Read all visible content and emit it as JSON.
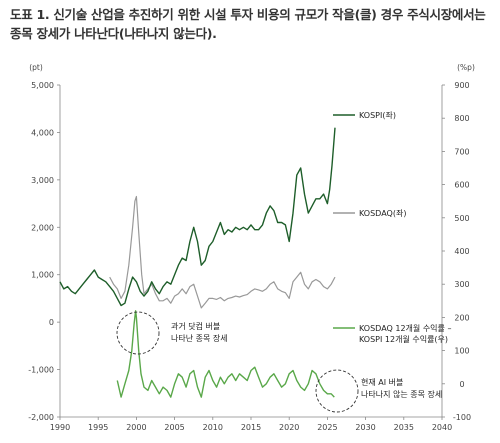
{
  "title": "도표 1. 신기술 산업을 추진하기 위한 시설 투자 비용의 규모가 작을(클) 경우 주식시장에서는 종목 장세가 나타난다(나타나지 않는다).",
  "chart_data": {
    "type": "line",
    "title": "도표 1. 신기술 산업을 추진하기 위한 시설 투자 비용의 규모가 작을(클) 경우 주식시장에서는 종목 장세가 나타난다(나타나지 않는다).",
    "xlim": [
      1990,
      2040
    ],
    "x_ticks": [
      "1990",
      "1995",
      "2000",
      "2005",
      "2010",
      "2015",
      "2020",
      "2025",
      "2030",
      "2035",
      "2040"
    ],
    "y_left": {
      "unit": "(pt)",
      "range": [
        -2000,
        5000
      ],
      "ticks": [
        "5,000",
        "4,000",
        "3,000",
        "2,000",
        "1,000",
        "0",
        "-1,000",
        "-2,000"
      ]
    },
    "y_right": {
      "unit": "(%p)",
      "range": [
        -100,
        900
      ],
      "ticks": [
        "900",
        "800",
        "700",
        "600",
        "500",
        "400",
        "300",
        "200",
        "100",
        "0",
        "-100"
      ]
    },
    "series": [
      {
        "name": "KOSPI(좌)",
        "axis": "left",
        "color": "#1e5e2a",
        "points": [
          [
            1990,
            850
          ],
          [
            1990.5,
            700
          ],
          [
            1991,
            750
          ],
          [
            1991.5,
            650
          ],
          [
            1992,
            600
          ],
          [
            1992.5,
            700
          ],
          [
            1993,
            800
          ],
          [
            1993.5,
            900
          ],
          [
            1994,
            1000
          ],
          [
            1994.5,
            1100
          ],
          [
            1995,
            950
          ],
          [
            1995.5,
            900
          ],
          [
            1996,
            850
          ],
          [
            1996.5,
            750
          ],
          [
            1997,
            650
          ],
          [
            1997.5,
            500
          ],
          [
            1998,
            350
          ],
          [
            1998.5,
            400
          ],
          [
            1999,
            700
          ],
          [
            1999.5,
            950
          ],
          [
            2000,
            850
          ],
          [
            2000.5,
            650
          ],
          [
            2001,
            550
          ],
          [
            2001.5,
            650
          ],
          [
            2002,
            850
          ],
          [
            2002.5,
            700
          ],
          [
            2003,
            600
          ],
          [
            2003.5,
            750
          ],
          [
            2004,
            850
          ],
          [
            2004.5,
            800
          ],
          [
            2005,
            1000
          ],
          [
            2005.5,
            1200
          ],
          [
            2006,
            1350
          ],
          [
            2006.5,
            1300
          ],
          [
            2007,
            1700
          ],
          [
            2007.5,
            2000
          ],
          [
            2008,
            1700
          ],
          [
            2008.5,
            1200
          ],
          [
            2009,
            1300
          ],
          [
            2009.5,
            1600
          ],
          [
            2010,
            1700
          ],
          [
            2010.5,
            1900
          ],
          [
            2011,
            2100
          ],
          [
            2011.5,
            1850
          ],
          [
            2012,
            1950
          ],
          [
            2012.5,
            1900
          ],
          [
            2013,
            2000
          ],
          [
            2013.5,
            1950
          ],
          [
            2014,
            2000
          ],
          [
            2014.5,
            1950
          ],
          [
            2015,
            2050
          ],
          [
            2015.5,
            1950
          ],
          [
            2016,
            1950
          ],
          [
            2016.5,
            2050
          ],
          [
            2017,
            2300
          ],
          [
            2017.5,
            2450
          ],
          [
            2018,
            2350
          ],
          [
            2018.5,
            2100
          ],
          [
            2019,
            2100
          ],
          [
            2019.5,
            2050
          ],
          [
            2020,
            1700
          ],
          [
            2020.5,
            2300
          ],
          [
            2021,
            3100
          ],
          [
            2021.5,
            3250
          ],
          [
            2022,
            2700
          ],
          [
            2022.5,
            2300
          ],
          [
            2023,
            2450
          ],
          [
            2023.5,
            2600
          ],
          [
            2024,
            2600
          ],
          [
            2024.5,
            2700
          ],
          [
            2025,
            2500
          ],
          [
            2025.3,
            2800
          ],
          [
            2025.6,
            3300
          ],
          [
            2025.8,
            3700
          ],
          [
            2026,
            4100
          ]
        ]
      },
      {
        "name": "KOSDAQ(좌)",
        "axis": "left",
        "color": "#999999",
        "points": [
          [
            1996.5,
            950
          ],
          [
            1997,
            800
          ],
          [
            1997.5,
            700
          ],
          [
            1998,
            500
          ],
          [
            1998.5,
            650
          ],
          [
            1999,
            1200
          ],
          [
            1999.5,
            2000
          ],
          [
            1999.8,
            2550
          ],
          [
            2000,
            2650
          ],
          [
            2000.3,
            1900
          ],
          [
            2000.7,
            1000
          ],
          [
            2001,
            600
          ],
          [
            2001.5,
            700
          ],
          [
            2002,
            800
          ],
          [
            2002.5,
            600
          ],
          [
            2003,
            450
          ],
          [
            2003.5,
            450
          ],
          [
            2004,
            500
          ],
          [
            2004.5,
            400
          ],
          [
            2005,
            550
          ],
          [
            2005.5,
            600
          ],
          [
            2006,
            700
          ],
          [
            2006.5,
            600
          ],
          [
            2007,
            750
          ],
          [
            2007.5,
            800
          ],
          [
            2008,
            550
          ],
          [
            2008.5,
            300
          ],
          [
            2009,
            400
          ],
          [
            2009.5,
            500
          ],
          [
            2010,
            500
          ],
          [
            2010.5,
            480
          ],
          [
            2011,
            520
          ],
          [
            2011.5,
            450
          ],
          [
            2012,
            500
          ],
          [
            2012.5,
            520
          ],
          [
            2013,
            550
          ],
          [
            2013.5,
            530
          ],
          [
            2014,
            560
          ],
          [
            2014.5,
            580
          ],
          [
            2015,
            650
          ],
          [
            2015.5,
            700
          ],
          [
            2016,
            680
          ],
          [
            2016.5,
            650
          ],
          [
            2017,
            700
          ],
          [
            2017.5,
            800
          ],
          [
            2018,
            850
          ],
          [
            2018.5,
            700
          ],
          [
            2019,
            650
          ],
          [
            2019.5,
            620
          ],
          [
            2020,
            500
          ],
          [
            2020.5,
            850
          ],
          [
            2021,
            950
          ],
          [
            2021.5,
            1050
          ],
          [
            2022,
            800
          ],
          [
            2022.5,
            700
          ],
          [
            2023,
            850
          ],
          [
            2023.5,
            900
          ],
          [
            2024,
            850
          ],
          [
            2024.5,
            750
          ],
          [
            2025,
            700
          ],
          [
            2025.5,
            800
          ],
          [
            2026,
            950
          ]
        ]
      },
      {
        "name": "KOSDAQ 12개월 수익률 - KOSPI 12개월 수익률(우)",
        "axis": "right",
        "color": "#5aa84a",
        "points": [
          [
            1997.5,
            10
          ],
          [
            1998,
            -40
          ],
          [
            1998.5,
            0
          ],
          [
            1999,
            40
          ],
          [
            1999.4,
            100
          ],
          [
            1999.7,
            180
          ],
          [
            1999.9,
            220
          ],
          [
            2000,
            200
          ],
          [
            2000.3,
            100
          ],
          [
            2000.6,
            30
          ],
          [
            2001,
            -10
          ],
          [
            2001.5,
            -20
          ],
          [
            2002,
            10
          ],
          [
            2002.5,
            -10
          ],
          [
            2003,
            -30
          ],
          [
            2003.5,
            -10
          ],
          [
            2004,
            -20
          ],
          [
            2004.5,
            -40
          ],
          [
            2005,
            0
          ],
          [
            2005.5,
            30
          ],
          [
            2006,
            20
          ],
          [
            2006.5,
            -10
          ],
          [
            2007,
            30
          ],
          [
            2007.5,
            40
          ],
          [
            2008,
            -10
          ],
          [
            2008.5,
            -40
          ],
          [
            2009,
            20
          ],
          [
            2009.5,
            40
          ],
          [
            2010,
            10
          ],
          [
            2010.5,
            -10
          ],
          [
            2011,
            20
          ],
          [
            2011.5,
            0
          ],
          [
            2012,
            20
          ],
          [
            2012.5,
            30
          ],
          [
            2013,
            10
          ],
          [
            2013.5,
            30
          ],
          [
            2014,
            20
          ],
          [
            2014.5,
            10
          ],
          [
            2015,
            40
          ],
          [
            2015.5,
            50
          ],
          [
            2016,
            20
          ],
          [
            2016.5,
            -10
          ],
          [
            2017,
            0
          ],
          [
            2017.5,
            20
          ],
          [
            2018,
            30
          ],
          [
            2018.5,
            10
          ],
          [
            2019,
            -10
          ],
          [
            2019.5,
            0
          ],
          [
            2020,
            30
          ],
          [
            2020.5,
            40
          ],
          [
            2021,
            10
          ],
          [
            2021.5,
            -10
          ],
          [
            2022,
            -20
          ],
          [
            2022.5,
            0
          ],
          [
            2023,
            40
          ],
          [
            2023.5,
            30
          ],
          [
            2024,
            0
          ],
          [
            2024.5,
            -20
          ],
          [
            2025,
            -30
          ],
          [
            2025.5,
            -30
          ],
          [
            2025.9,
            -40
          ]
        ]
      }
    ],
    "annotations": [
      {
        "lines": [
          "과거 닷컴 버블",
          "나타난 종목 장세"
        ]
      },
      {
        "lines": [
          "현재 AI 버블",
          "나타나지 않는 종목 장세"
        ]
      }
    ]
  }
}
